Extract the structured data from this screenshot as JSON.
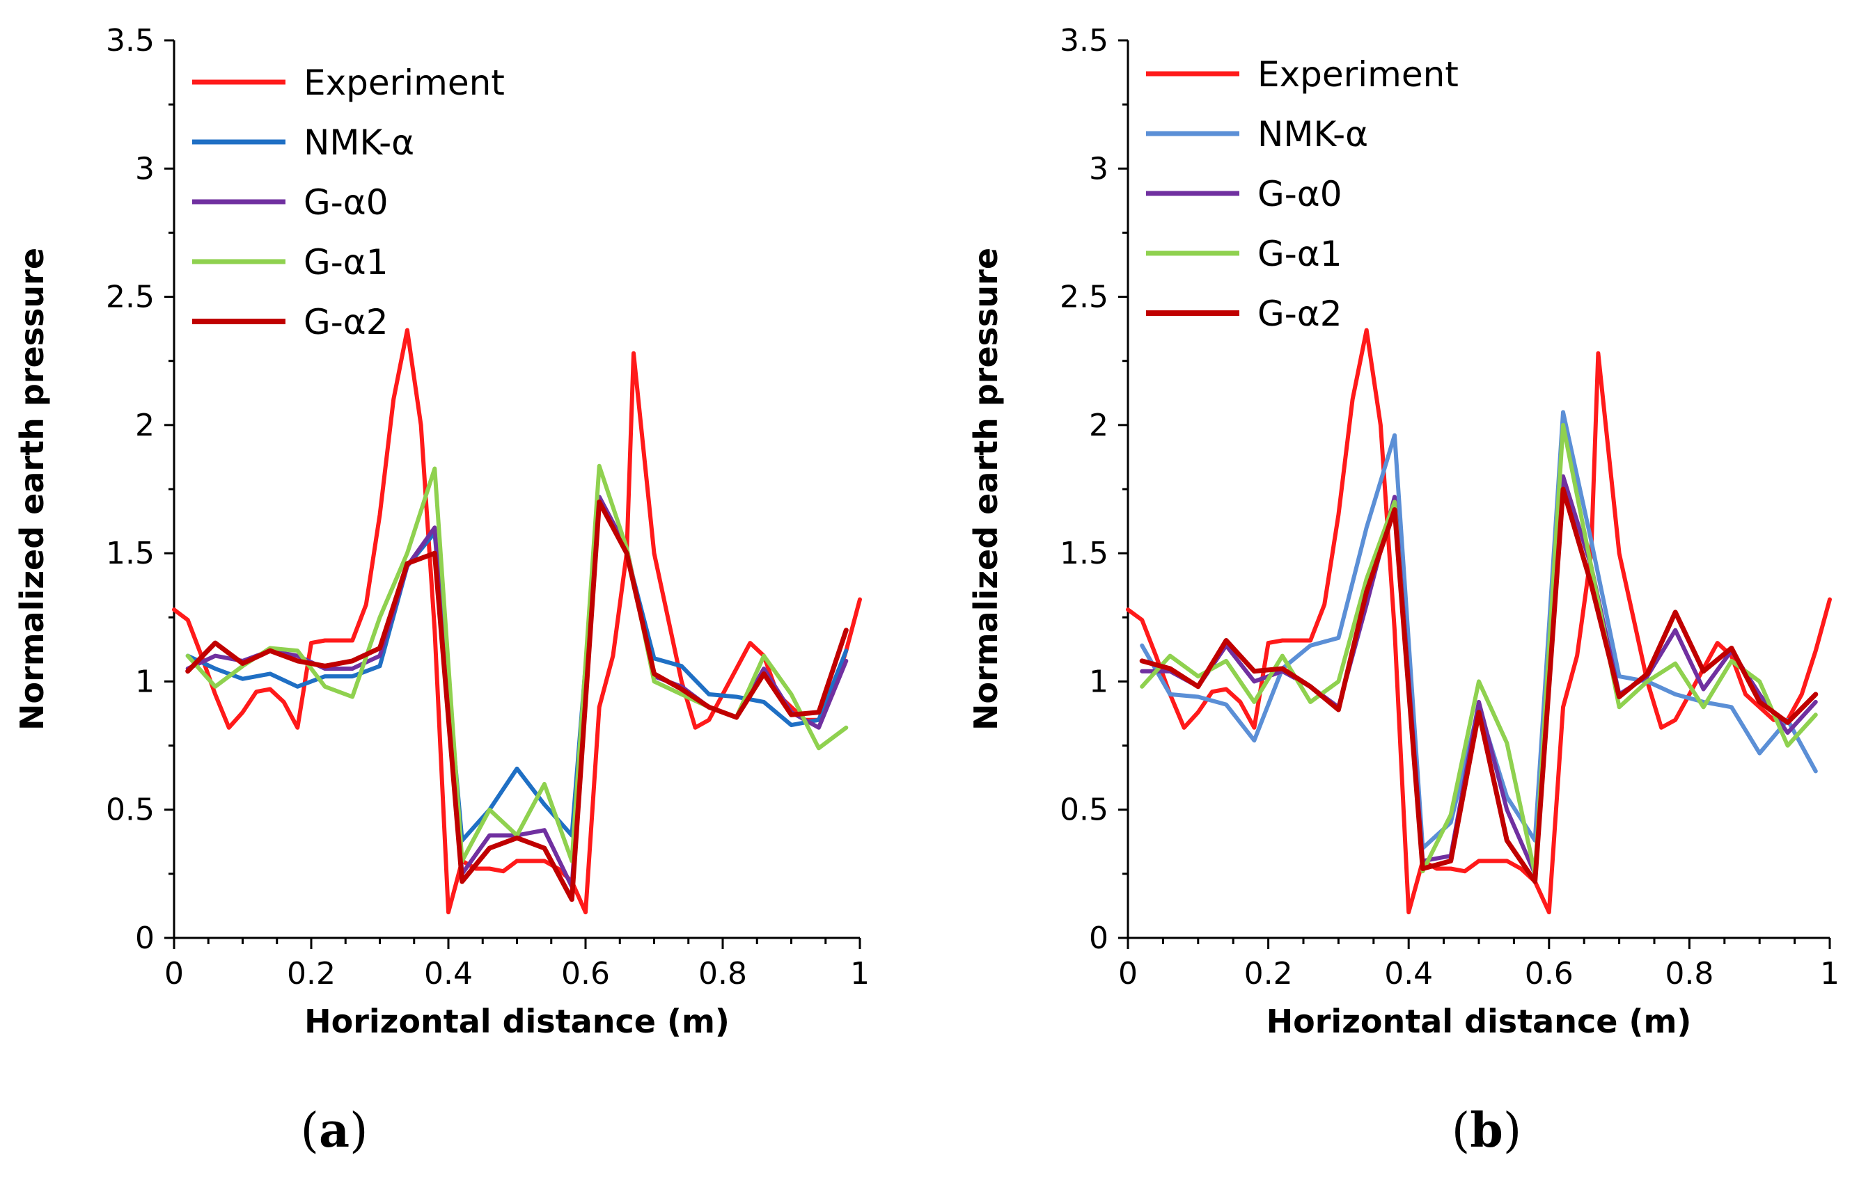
{
  "chart_data": [
    {
      "type": "line",
      "panel_label": "a",
      "xlabel": "Horizontal distance (m)",
      "ylabel": "Normalized earth pressure",
      "xlim": [
        0,
        1
      ],
      "ylim": [
        0,
        3.5
      ],
      "xticks": [
        "0",
        "0.2",
        "0.4",
        "0.6",
        "0.8",
        "1"
      ],
      "xtick_values": [
        0,
        0.2,
        0.4,
        0.6,
        0.8,
        1
      ],
      "yticks": [
        "0",
        "0.5",
        "1",
        "1.5",
        "2",
        "2.5",
        "3",
        "3.5"
      ],
      "ytick_values": [
        0,
        0.5,
        1,
        1.5,
        2,
        2.5,
        3,
        3.5
      ],
      "grid": false,
      "legend_position": "top-left",
      "series": [
        {
          "name": "Experiment",
          "color": "#ff1a1a",
          "x": [
            0,
            0.02,
            0.04,
            0.06,
            0.08,
            0.1,
            0.12,
            0.14,
            0.16,
            0.18,
            0.2,
            0.22,
            0.24,
            0.26,
            0.28,
            0.3,
            0.32,
            0.34,
            0.36,
            0.38,
            0.4,
            0.42,
            0.44,
            0.46,
            0.48,
            0.5,
            0.52,
            0.54,
            0.56,
            0.58,
            0.6,
            0.62,
            0.64,
            0.66,
            0.67,
            0.7,
            0.72,
            0.74,
            0.76,
            0.78,
            0.8,
            0.82,
            0.84,
            0.86,
            0.88,
            0.9,
            0.92,
            0.94,
            0.96,
            0.98,
            1
          ],
          "y": [
            1.28,
            1.24,
            1.1,
            0.95,
            0.82,
            0.88,
            0.96,
            0.97,
            0.92,
            0.82,
            1.15,
            1.16,
            1.16,
            1.16,
            1.3,
            1.65,
            2.1,
            2.37,
            2.0,
            1.2,
            0.1,
            0.3,
            0.27,
            0.27,
            0.26,
            0.3,
            0.3,
            0.3,
            0.27,
            0.22,
            0.1,
            0.9,
            1.1,
            1.5,
            2.28,
            1.5,
            1.25,
            1.0,
            0.82,
            0.85,
            0.95,
            1.05,
            1.15,
            1.1,
            0.95,
            0.9,
            0.85,
            0.85,
            0.95,
            1.12,
            1.32
          ]
        },
        {
          "name": "NMK-α",
          "color": "#1f6fc4",
          "x": [
            0.02,
            0.06,
            0.1,
            0.14,
            0.18,
            0.22,
            0.26,
            0.3,
            0.34,
            0.38,
            0.42,
            0.46,
            0.5,
            0.54,
            0.58,
            0.62,
            0.66,
            0.7,
            0.74,
            0.78,
            0.82,
            0.86,
            0.9,
            0.94,
            0.98
          ],
          "y": [
            1.1,
            1.05,
            1.01,
            1.03,
            0.98,
            1.02,
            1.02,
            1.06,
            1.45,
            1.58,
            0.38,
            0.5,
            0.66,
            0.52,
            0.4,
            1.72,
            1.5,
            1.09,
            1.06,
            0.95,
            0.94,
            0.92,
            0.83,
            0.85,
            1.12
          ]
        },
        {
          "name": "G-α0",
          "color": "#7030a0",
          "x": [
            0.02,
            0.06,
            0.1,
            0.14,
            0.18,
            0.22,
            0.26,
            0.3,
            0.34,
            0.38,
            0.42,
            0.46,
            0.5,
            0.54,
            0.58,
            0.62,
            0.66,
            0.7,
            0.74,
            0.78,
            0.82,
            0.86,
            0.9,
            0.94,
            0.98
          ],
          "y": [
            1.05,
            1.1,
            1.08,
            1.12,
            1.1,
            1.05,
            1.05,
            1.1,
            1.45,
            1.6,
            0.25,
            0.4,
            0.4,
            0.42,
            0.2,
            1.72,
            1.52,
            1.02,
            0.98,
            0.9,
            0.86,
            1.05,
            0.88,
            0.82,
            1.08
          ]
        },
        {
          "name": "G-α1",
          "color": "#8fd14f",
          "x": [
            0.02,
            0.06,
            0.1,
            0.14,
            0.18,
            0.22,
            0.26,
            0.3,
            0.34,
            0.38,
            0.42,
            0.46,
            0.5,
            0.54,
            0.58,
            0.62,
            0.66,
            0.7,
            0.74,
            0.78,
            0.82,
            0.86,
            0.9,
            0.94,
            0.98
          ],
          "y": [
            1.1,
            0.98,
            1.06,
            1.13,
            1.12,
            0.98,
            0.94,
            1.25,
            1.5,
            1.83,
            0.3,
            0.5,
            0.4,
            0.6,
            0.3,
            1.84,
            1.52,
            1.0,
            0.95,
            0.9,
            0.86,
            1.1,
            0.95,
            0.74,
            0.82
          ]
        },
        {
          "name": "G-α2",
          "color": "#c00000",
          "x": [
            0.02,
            0.06,
            0.1,
            0.14,
            0.18,
            0.22,
            0.26,
            0.3,
            0.34,
            0.38,
            0.42,
            0.46,
            0.5,
            0.54,
            0.58,
            0.62,
            0.66,
            0.7,
            0.74,
            0.78,
            0.82,
            0.86,
            0.9,
            0.94,
            0.98
          ],
          "y": [
            1.04,
            1.15,
            1.07,
            1.12,
            1.08,
            1.06,
            1.08,
            1.13,
            1.46,
            1.5,
            0.22,
            0.35,
            0.39,
            0.35,
            0.15,
            1.7,
            1.5,
            1.03,
            0.97,
            0.9,
            0.86,
            1.03,
            0.87,
            0.88,
            1.2
          ]
        }
      ]
    },
    {
      "type": "line",
      "panel_label": "b",
      "xlabel": "Horizontal distance (m)",
      "ylabel": "Normalized earth pressure",
      "xlim": [
        0,
        1
      ],
      "ylim": [
        0,
        3.5
      ],
      "xticks": [
        "0",
        "0.2",
        "0.4",
        "0.6",
        "0.8",
        "1"
      ],
      "xtick_values": [
        0,
        0.2,
        0.4,
        0.6,
        0.8,
        1
      ],
      "yticks": [
        "0",
        "0.5",
        "1",
        "1.5",
        "2",
        "2.5",
        "3",
        "3.5"
      ],
      "ytick_values": [
        0,
        0.5,
        1,
        1.5,
        2,
        2.5,
        3,
        3.5
      ],
      "grid": false,
      "legend_position": "top-left",
      "series": [
        {
          "name": "Experiment",
          "color": "#ff1a1a",
          "x": [
            0,
            0.02,
            0.04,
            0.06,
            0.08,
            0.1,
            0.12,
            0.14,
            0.16,
            0.18,
            0.2,
            0.22,
            0.24,
            0.26,
            0.28,
            0.3,
            0.32,
            0.34,
            0.36,
            0.38,
            0.4,
            0.42,
            0.44,
            0.46,
            0.48,
            0.5,
            0.52,
            0.54,
            0.56,
            0.58,
            0.6,
            0.62,
            0.64,
            0.66,
            0.67,
            0.7,
            0.72,
            0.74,
            0.76,
            0.78,
            0.8,
            0.82,
            0.84,
            0.86,
            0.88,
            0.9,
            0.92,
            0.94,
            0.96,
            0.98,
            1
          ],
          "y": [
            1.28,
            1.24,
            1.1,
            0.95,
            0.82,
            0.88,
            0.96,
            0.97,
            0.92,
            0.82,
            1.15,
            1.16,
            1.16,
            1.16,
            1.3,
            1.65,
            2.1,
            2.37,
            2.0,
            1.2,
            0.1,
            0.3,
            0.27,
            0.27,
            0.26,
            0.3,
            0.3,
            0.3,
            0.27,
            0.22,
            0.1,
            0.9,
            1.1,
            1.5,
            2.28,
            1.5,
            1.25,
            1.0,
            0.82,
            0.85,
            0.95,
            1.05,
            1.15,
            1.1,
            0.95,
            0.9,
            0.85,
            0.85,
            0.95,
            1.12,
            1.32
          ]
        },
        {
          "name": "NMK-α",
          "color": "#5b8fd6",
          "x": [
            0.02,
            0.06,
            0.1,
            0.14,
            0.18,
            0.22,
            0.26,
            0.3,
            0.34,
            0.38,
            0.42,
            0.46,
            0.5,
            0.54,
            0.58,
            0.62,
            0.66,
            0.7,
            0.74,
            0.78,
            0.82,
            0.86,
            0.9,
            0.94,
            0.98
          ],
          "y": [
            1.14,
            0.95,
            0.94,
            0.91,
            0.77,
            1.05,
            1.14,
            1.17,
            1.6,
            1.96,
            0.35,
            0.45,
            0.9,
            0.55,
            0.38,
            2.05,
            1.55,
            1.02,
            1.0,
            0.95,
            0.92,
            0.9,
            0.72,
            0.85,
            0.65
          ]
        },
        {
          "name": "G-α0",
          "color": "#7030a0",
          "x": [
            0.02,
            0.06,
            0.1,
            0.14,
            0.18,
            0.22,
            0.26,
            0.3,
            0.34,
            0.38,
            0.42,
            0.46,
            0.5,
            0.54,
            0.58,
            0.62,
            0.66,
            0.7,
            0.74,
            0.78,
            0.82,
            0.86,
            0.9,
            0.94,
            0.98
          ],
          "y": [
            1.04,
            1.04,
            0.98,
            1.14,
            1.0,
            1.04,
            0.98,
            0.9,
            1.3,
            1.72,
            0.3,
            0.32,
            0.92,
            0.5,
            0.25,
            1.8,
            1.45,
            0.95,
            1.02,
            1.2,
            0.97,
            1.12,
            0.95,
            0.8,
            0.92
          ]
        },
        {
          "name": "G-α1",
          "color": "#8fd14f",
          "x": [
            0.02,
            0.06,
            0.1,
            0.14,
            0.18,
            0.22,
            0.26,
            0.3,
            0.34,
            0.38,
            0.42,
            0.46,
            0.5,
            0.54,
            0.58,
            0.62,
            0.66,
            0.7,
            0.74,
            0.78,
            0.82,
            0.86,
            0.9,
            0.94,
            0.98
          ],
          "y": [
            0.98,
            1.1,
            1.02,
            1.08,
            0.92,
            1.1,
            0.92,
            1.0,
            1.4,
            1.7,
            0.26,
            0.48,
            1.0,
            0.76,
            0.25,
            2.0,
            1.45,
            0.9,
            1.0,
            1.07,
            0.9,
            1.08,
            1.0,
            0.75,
            0.87
          ]
        },
        {
          "name": "G-α2",
          "color": "#c00000",
          "x": [
            0.02,
            0.06,
            0.1,
            0.14,
            0.18,
            0.22,
            0.26,
            0.3,
            0.34,
            0.38,
            0.42,
            0.46,
            0.5,
            0.54,
            0.58,
            0.62,
            0.66,
            0.7,
            0.74,
            0.78,
            0.82,
            0.86,
            0.9,
            0.94,
            0.98
          ],
          "y": [
            1.08,
            1.05,
            0.98,
            1.16,
            1.04,
            1.05,
            0.98,
            0.89,
            1.35,
            1.67,
            0.27,
            0.3,
            0.88,
            0.38,
            0.22,
            1.75,
            1.38,
            0.94,
            1.03,
            1.27,
            1.04,
            1.13,
            0.92,
            0.84,
            0.95
          ]
        }
      ]
    }
  ]
}
